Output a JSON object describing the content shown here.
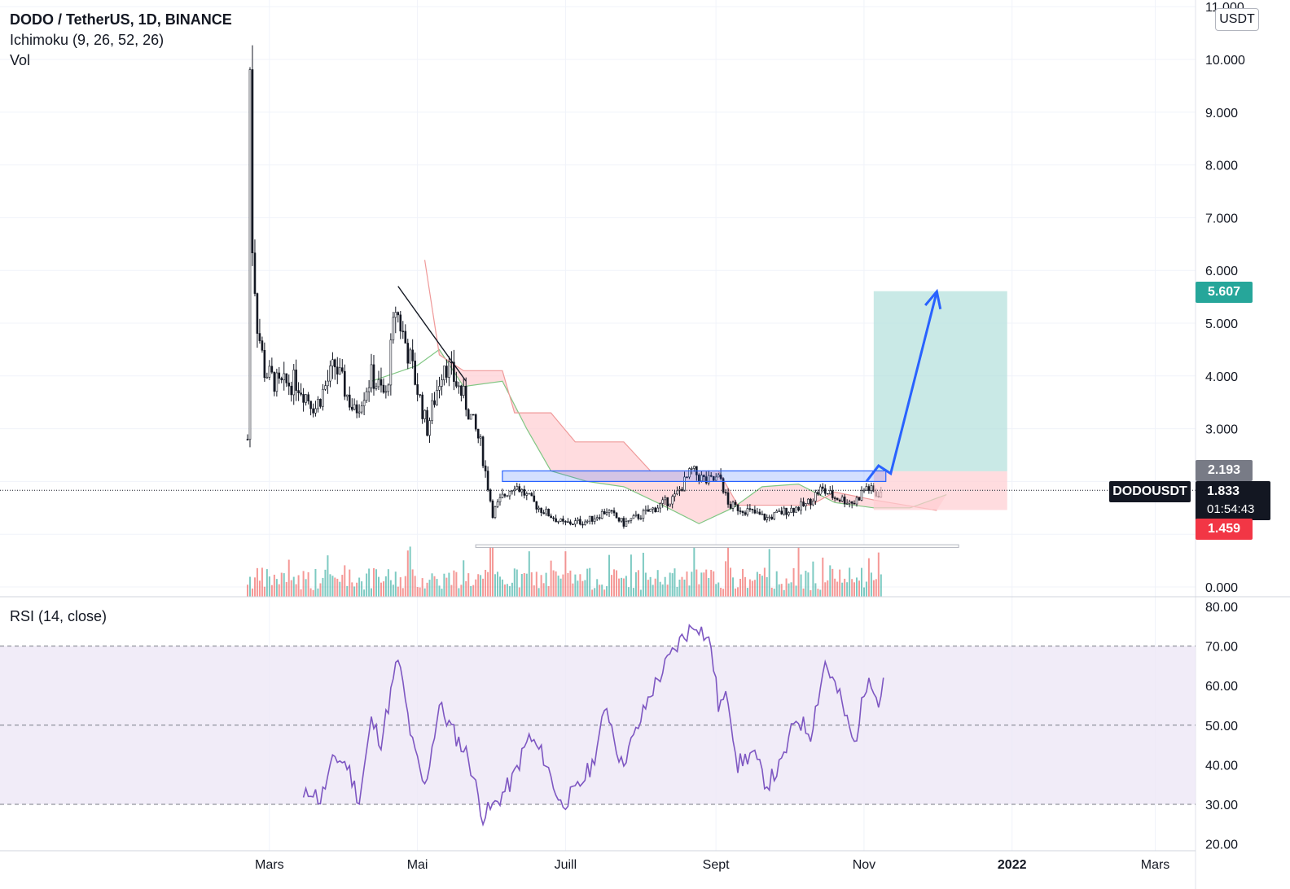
{
  "header": {
    "symbol_line": "DODO / TetherUS, 1D, BINANCE",
    "indicator_ichimoku": "Ichimoku (9, 26, 52, 26)",
    "indicator_vol": "Vol",
    "rsi_label": "RSI (14, close)",
    "unit": "USDT"
  },
  "tags": {
    "target_price": "5.607",
    "resistance_price": "2.193",
    "symbol": "DODOUSDT",
    "last_price": "1.833",
    "countdown": "01:54:43",
    "stop_price": "1.459"
  },
  "colors": {
    "up": "#26a69a",
    "down": "#ef5350",
    "rsi_line": "#7e57c2",
    "rsi_band": "#ede7f6",
    "target_zone": "#b2dfdb",
    "stop_zone": "#ffcdd2",
    "arrow": "#2962ff",
    "last_price_tag": "#131722",
    "resistance_tag": "#787b86"
  },
  "chart_data": [
    {
      "type": "candlestick",
      "title": "DODO / TetherUS, 1D, BINANCE",
      "y_axis_ticks": [
        "11.000",
        "10.000",
        "9.000",
        "8.000",
        "7.000",
        "6.000",
        "5.000",
        "4.000",
        "3.000",
        "2.000",
        "1.000",
        "0.000"
      ],
      "x_axis_ticks": [
        "Mars",
        "Mai",
        "Juill",
        "Sept",
        "Nov",
        "2022",
        "Mars"
      ],
      "close_path": [
        [
          "2021-02-20",
          2.8
        ],
        [
          "2021-02-21",
          9.8
        ],
        [
          "2021-02-22",
          6.5
        ],
        [
          "2021-02-24",
          5.0
        ],
        [
          "2021-02-27",
          4.1
        ],
        [
          "2021-03-05",
          3.8
        ],
        [
          "2021-03-12",
          3.9
        ],
        [
          "2021-03-20",
          3.4
        ],
        [
          "2021-03-28",
          4.2
        ],
        [
          "2021-04-05",
          3.3
        ],
        [
          "2021-04-12",
          4.0
        ],
        [
          "2021-04-18",
          3.6
        ],
        [
          "2021-04-22",
          5.3
        ],
        [
          "2021-04-28",
          4.3
        ],
        [
          "2021-05-05",
          3.0
        ],
        [
          "2021-05-12",
          4.3
        ],
        [
          "2021-05-20",
          3.6
        ],
        [
          "2021-05-27",
          2.7
        ],
        [
          "2021-06-01",
          1.4
        ],
        [
          "2021-06-05",
          1.7
        ],
        [
          "2021-06-10",
          1.95
        ],
        [
          "2021-06-20",
          1.5
        ],
        [
          "2021-06-30",
          1.2
        ],
        [
          "2021-07-10",
          1.25
        ],
        [
          "2021-07-18",
          1.45
        ],
        [
          "2021-07-25",
          1.2
        ],
        [
          "2021-08-05",
          1.45
        ],
        [
          "2021-08-15",
          1.7
        ],
        [
          "2021-08-22",
          2.2
        ],
        [
          "2021-08-28",
          2.0
        ],
        [
          "2021-09-03",
          2.05
        ],
        [
          "2021-09-06",
          1.55
        ],
        [
          "2021-09-14",
          1.45
        ],
        [
          "2021-09-22",
          1.3
        ],
        [
          "2021-09-30",
          1.45
        ],
        [
          "2021-10-08",
          1.55
        ],
        [
          "2021-10-14",
          1.85
        ],
        [
          "2021-10-20",
          1.7
        ],
        [
          "2021-10-28",
          1.6
        ],
        [
          "2021-11-02",
          1.9
        ],
        [
          "2021-11-06",
          1.75
        ],
        [
          "2021-11-09",
          1.83
        ]
      ],
      "ichimoku_cloud_span_a": [
        [
          "2021-04-12",
          3.9
        ],
        [
          "2021-05-01",
          4.2
        ],
        [
          "2021-05-10",
          4.5
        ],
        [
          "2021-05-20",
          3.8
        ],
        [
          "2021-06-05",
          3.9
        ],
        [
          "2021-06-15",
          3.0
        ],
        [
          "2021-06-25",
          2.2
        ],
        [
          "2021-07-10",
          2.0
        ],
        [
          "2021-07-25",
          1.9
        ],
        [
          "2021-08-10",
          1.55
        ],
        [
          "2021-08-25",
          1.2
        ],
        [
          "2021-09-08",
          1.5
        ],
        [
          "2021-09-20",
          1.9
        ],
        [
          "2021-10-05",
          1.95
        ],
        [
          "2021-10-20",
          1.6
        ],
        [
          "2021-11-05",
          1.5
        ],
        [
          "2021-11-20",
          1.5
        ],
        [
          "2021-12-05",
          1.75
        ]
      ],
      "ichimoku_cloud_span_b": [
        [
          "2021-05-04",
          6.2
        ],
        [
          "2021-05-10",
          4.4
        ],
        [
          "2021-05-20",
          4.1
        ],
        [
          "2021-06-05",
          4.1
        ],
        [
          "2021-06-10",
          3.3
        ],
        [
          "2021-06-25",
          3.3
        ],
        [
          "2021-07-05",
          2.75
        ],
        [
          "2021-07-25",
          2.75
        ],
        [
          "2021-08-05",
          2.2
        ],
        [
          "2021-08-20",
          2.2
        ],
        [
          "2021-09-02",
          2.2
        ],
        [
          "2021-09-10",
          1.55
        ],
        [
          "2021-10-10",
          1.55
        ],
        [
          "2021-10-20",
          1.8
        ],
        [
          "2021-11-05",
          1.65
        ],
        [
          "2021-12-01",
          1.45
        ]
      ],
      "volume_note": "volume histogram bars at bottom of price pane",
      "annotations": {
        "downtrend_line": [
          [
            "2021-04-23",
            5.7
          ],
          [
            "2021-05-21",
            3.9
          ]
        ],
        "resistance_box": {
          "from": "2021-06-05",
          "to": "2021-11-10",
          "top": 2.2,
          "bottom": 2.0
        },
        "support_box": {
          "from": "2021-05-25",
          "to": "2021-12-10",
          "top": 0.8,
          "bottom": 0.75
        },
        "long_position": {
          "from": "2021-11-05",
          "to": "2021-12-30",
          "entry": 2.193,
          "target": 5.607,
          "stop": 1.459
        },
        "projection_arrow": [
          [
            "2021-11-02",
            2.0
          ],
          [
            "2021-11-07",
            2.3
          ],
          [
            "2021-11-12",
            2.15
          ],
          [
            "2021-12-01",
            5.6
          ]
        ],
        "last_price": 1.833
      }
    },
    {
      "type": "line",
      "title": "RSI (14, close)",
      "y_axis_ticks": [
        "80.00",
        "70.00",
        "60.00",
        "50.00",
        "40.00",
        "30.00",
        "20.00"
      ],
      "band": [
        30,
        70
      ],
      "midline": 50,
      "rsi_path": [
        [
          "2021-03-15",
          31
        ],
        [
          "2021-03-18",
          34
        ],
        [
          "2021-03-22",
          31
        ],
        [
          "2021-03-28",
          42
        ],
        [
          "2021-04-02",
          40
        ],
        [
          "2021-04-07",
          31
        ],
        [
          "2021-04-12",
          51
        ],
        [
          "2021-04-16",
          46
        ],
        [
          "2021-04-23",
          67
        ],
        [
          "2021-04-29",
          45
        ],
        [
          "2021-05-04",
          34
        ],
        [
          "2021-05-10",
          55
        ],
        [
          "2021-05-16",
          48
        ],
        [
          "2021-05-22",
          42
        ],
        [
          "2021-05-28",
          27
        ],
        [
          "2021-06-02",
          30
        ],
        [
          "2021-06-09",
          36
        ],
        [
          "2021-06-16",
          47
        ],
        [
          "2021-06-22",
          42
        ],
        [
          "2021-06-29",
          30
        ],
        [
          "2021-07-05",
          33
        ],
        [
          "2021-07-12",
          40
        ],
        [
          "2021-07-18",
          55
        ],
        [
          "2021-07-24",
          40
        ],
        [
          "2021-07-30",
          48
        ],
        [
          "2021-08-05",
          58
        ],
        [
          "2021-08-12",
          66
        ],
        [
          "2021-08-18",
          72
        ],
        [
          "2021-08-24",
          76
        ],
        [
          "2021-08-30",
          70
        ],
        [
          "2021-09-02",
          55
        ],
        [
          "2021-09-06",
          57
        ],
        [
          "2021-09-10",
          40
        ],
        [
          "2021-09-16",
          43
        ],
        [
          "2021-09-22",
          35
        ],
        [
          "2021-09-28",
          40
        ],
        [
          "2021-10-04",
          52
        ],
        [
          "2021-10-10",
          48
        ],
        [
          "2021-10-16",
          66
        ],
        [
          "2021-10-22",
          57
        ],
        [
          "2021-10-28",
          45
        ],
        [
          "2021-11-03",
          64
        ],
        [
          "2021-11-07",
          55
        ],
        [
          "2021-11-09",
          62
        ]
      ]
    }
  ]
}
